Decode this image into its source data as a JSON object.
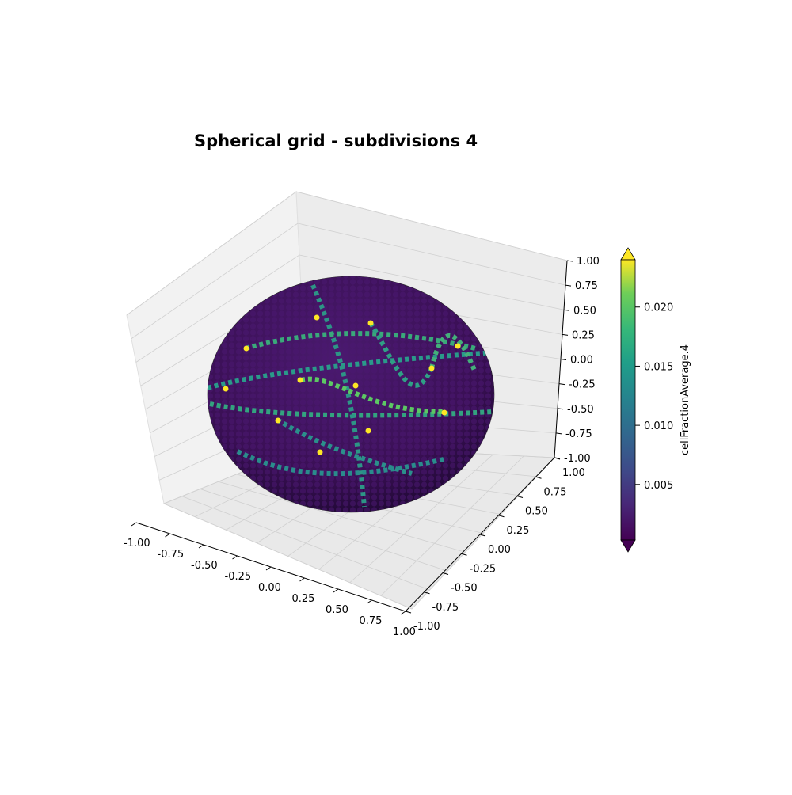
{
  "chart_data": {
    "type": "surface3d",
    "title": "Spherical grid - subdivisions 4",
    "xlabel": "",
    "ylabel": "",
    "zlabel": "",
    "xlim": [
      -1.0,
      1.0
    ],
    "ylim": [
      -1.0,
      1.0
    ],
    "zlim": [
      -1.0,
      1.0
    ],
    "x_ticks": [
      "-1.00",
      "-0.75",
      "-0.50",
      "-0.25",
      "0.00",
      "0.25",
      "0.50",
      "0.75",
      "1.00"
    ],
    "y_ticks": [
      "-1.00",
      "-0.75",
      "-0.50",
      "-0.25",
      "0.00",
      "0.25",
      "0.50",
      "0.75",
      "1.00"
    ],
    "z_ticks": [
      "-1.00",
      "-0.75",
      "-0.50",
      "-0.25",
      "0.00",
      "0.25",
      "0.50",
      "0.75",
      "1.00"
    ],
    "surface": "sphere",
    "subdivisions": 4,
    "grid": true,
    "colormap": "viridis",
    "colorbar": {
      "label": "cellFractionAverage.4",
      "range": [
        0.0003,
        0.024
      ],
      "ticks": [
        "0.005",
        "0.010",
        "0.015",
        "0.020"
      ],
      "tick_values": [
        0.005,
        0.01,
        0.015,
        0.02
      ],
      "extend": "both"
    }
  }
}
